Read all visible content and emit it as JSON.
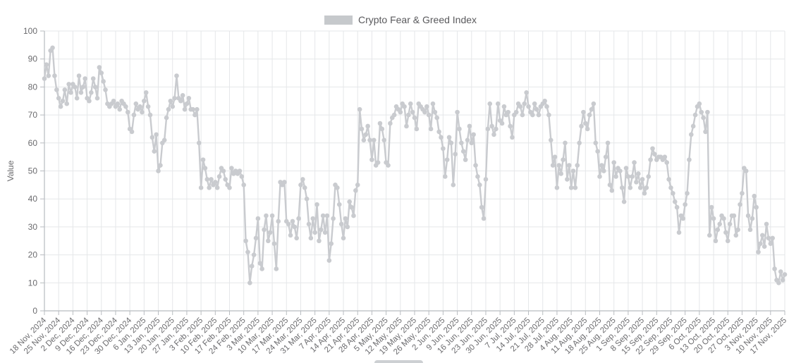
{
  "legend": {
    "label": "Crypto Fear & Greed Index",
    "swatch_color": "#c6c9cc"
  },
  "colors": {
    "series_line": "#c9cbcf",
    "series_marker": "#c9cbcf",
    "grid_line": "#e5e7e9",
    "axis_line": "#b8bcc0",
    "tick_text": "#6b6b6e",
    "legend_text": "#59595c"
  },
  "chart_data": {
    "type": "line",
    "title": "Crypto Fear & Greed Index",
    "xlabel": "",
    "ylabel": "Value",
    "ylim": [
      0,
      100
    ],
    "y_ticks": [
      0,
      10,
      20,
      30,
      40,
      50,
      60,
      70,
      80,
      90,
      100
    ],
    "grid": true,
    "legend_position": "top",
    "marker": "circle",
    "x_start": "18 Nov, 2024",
    "x_end": "17 Nov, 2025",
    "x_tick_interval_days": 7,
    "x_tick_labels": [
      "18 Nov, 2024",
      "25 Nov, 2024",
      "2 Dec, 2024",
      "9 Dec, 2024",
      "16 Dec, 2024",
      "23 Dec, 2024",
      "30 Dec, 2024",
      "6 Jan, 2025",
      "13 Jan, 2025",
      "20 Jan, 2025",
      "27 Jan, 2025",
      "3 Feb, 2025",
      "10 Feb, 2025",
      "17 Feb, 2025",
      "24 Feb, 2025",
      "3 Mar, 2025",
      "10 Mar, 2025",
      "17 Mar, 2025",
      "24 Mar, 2025",
      "31 Mar, 2025",
      "7 Apr, 2025",
      "14 Apr, 2025",
      "21 Apr, 2025",
      "28 Apr, 2025",
      "5 May, 2025",
      "12 May, 2025",
      "19 May, 2025",
      "26 May, 2025",
      "2 Jun, 2025",
      "9 Jun, 2025",
      "16 Jun, 2025",
      "23 Jun, 2025",
      "30 Jun, 2025",
      "7 Jul, 2025",
      "14 Jul, 2025",
      "21 Jul, 2025",
      "28 Jul, 2025",
      "4 Aug, 2025",
      "11 Aug, 2025",
      "18 Aug, 2025",
      "25 Aug, 2025",
      "1 Sep, 2025",
      "8 Sep, 2025",
      "15 Sep, 2025",
      "22 Sep, 2025",
      "29 Sep, 2025",
      "6 Oct, 2025",
      "13 Oct, 2025",
      "20 Oct, 2025",
      "27 Oct, 2025",
      "3 Nov, 2025",
      "10 Nov, 2025",
      "17 Nov, 2025"
    ],
    "series": [
      {
        "name": "Crypto Fear & Greed Index",
        "color": "#c9cbcf",
        "values": [
          83,
          88,
          84,
          93,
          94,
          84,
          79,
          76,
          73,
          75,
          79,
          74,
          81,
          78,
          81,
          80,
          76,
          84,
          78,
          80,
          83,
          76,
          75,
          78,
          83,
          80,
          76,
          87,
          85,
          82,
          79,
          74,
          73,
          74,
          75,
          73,
          74,
          72,
          75,
          74,
          73,
          71,
          65,
          64,
          70,
          74,
          72,
          73,
          71,
          75,
          78,
          73,
          70,
          62,
          57,
          63,
          50,
          52,
          60,
          61,
          69,
          72,
          75,
          73,
          76,
          84,
          76,
          75,
          77,
          72,
          74,
          76,
          72,
          72,
          70,
          72,
          60,
          44,
          54,
          51,
          47,
          44,
          47,
          45,
          46,
          44,
          48,
          51,
          50,
          47,
          45,
          44,
          51,
          49,
          50,
          49,
          50,
          48,
          45,
          25,
          21,
          10,
          16,
          20,
          26,
          33,
          17,
          15,
          29,
          34,
          25,
          28,
          34,
          24,
          15,
          32,
          46,
          45,
          46,
          32,
          31,
          27,
          32,
          30,
          26,
          33,
          45,
          47,
          44,
          40,
          31,
          26,
          33,
          28,
          38,
          25,
          29,
          34,
          28,
          34,
          18,
          24,
          33,
          45,
          44,
          38,
          31,
          26,
          33,
          30,
          39,
          37,
          34,
          43,
          45,
          72,
          65,
          61,
          63,
          66,
          61,
          54,
          61,
          52,
          53,
          67,
          65,
          61,
          53,
          52,
          67,
          69,
          70,
          73,
          72,
          71,
          74,
          73,
          66,
          70,
          74,
          71,
          69,
          65,
          74,
          73,
          72,
          71,
          73,
          70,
          65,
          74,
          71,
          69,
          64,
          62,
          58,
          48,
          54,
          62,
          60,
          45,
          56,
          71,
          65,
          60,
          57,
          54,
          61,
          66,
          60,
          63,
          52,
          48,
          45,
          37,
          33,
          47,
          65,
          74,
          66,
          63,
          65,
          74,
          68,
          67,
          73,
          70,
          71,
          66,
          62,
          70,
          71,
          74,
          73,
          70,
          74,
          78,
          73,
          71,
          70,
          74,
          72,
          70,
          73,
          74,
          75,
          73,
          70,
          61,
          52,
          55,
          44,
          52,
          49,
          54,
          60,
          47,
          52,
          44,
          50,
          44,
          52,
          60,
          66,
          71,
          67,
          65,
          70,
          72,
          74,
          60,
          57,
          48,
          52,
          50,
          55,
          60,
          45,
          43,
          53,
          48,
          51,
          50,
          44,
          39,
          51,
          48,
          44,
          48,
          53,
          46,
          49,
          44,
          47,
          42,
          44,
          48,
          54,
          58,
          56,
          54,
          55,
          55,
          54,
          55,
          53,
          47,
          44,
          42,
          39,
          37,
          28,
          34,
          33,
          38,
          42,
          54,
          63,
          66,
          70,
          73,
          74,
          71,
          69,
          64,
          71,
          27,
          37,
          33,
          25,
          29,
          31,
          34,
          33,
          28,
          25,
          31,
          34,
          34,
          27,
          29,
          38,
          42,
          51,
          50,
          34,
          29,
          33,
          41,
          37,
          21,
          24,
          27,
          23,
          31,
          26,
          24,
          26,
          15,
          11,
          10,
          14,
          11,
          13
        ]
      }
    ]
  },
  "cropped_bottom_element": {
    "description": "partially visible gray element cut off at bottom edge",
    "color": "#cdd0d3"
  }
}
